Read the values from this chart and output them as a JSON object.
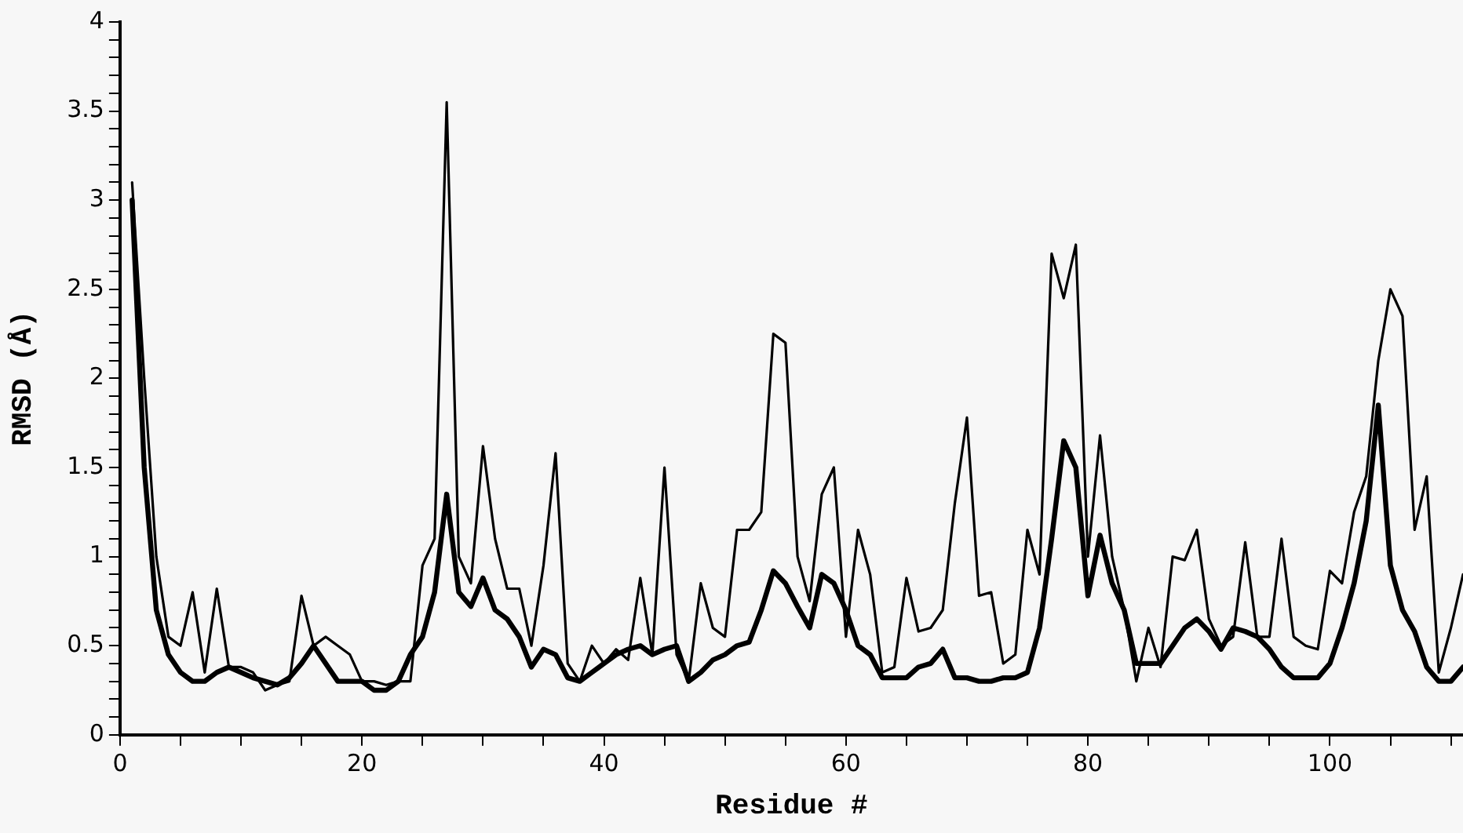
{
  "chart_data": {
    "type": "line",
    "xlabel": "Residue #",
    "ylabel": "RMSD (Å)",
    "x": [
      1,
      2,
      3,
      4,
      5,
      6,
      7,
      8,
      9,
      10,
      11,
      12,
      13,
      14,
      15,
      16,
      17,
      18,
      19,
      20,
      21,
      22,
      23,
      24,
      25,
      26,
      27,
      28,
      29,
      30,
      31,
      32,
      33,
      34,
      35,
      36,
      37,
      38,
      39,
      40,
      41,
      42,
      43,
      44,
      45,
      46,
      47,
      48,
      49,
      50,
      51,
      52,
      53,
      54,
      55,
      56,
      57,
      58,
      59,
      60,
      61,
      62,
      63,
      64,
      65,
      66,
      67,
      68,
      69,
      70,
      71,
      72,
      73,
      74,
      75,
      76,
      77,
      78,
      79,
      80,
      81,
      82,
      83,
      84,
      85,
      86,
      87,
      88,
      89,
      90,
      91,
      92,
      93,
      94,
      95,
      96,
      97,
      98,
      99,
      100,
      101,
      102,
      103,
      104,
      105,
      106,
      107,
      108,
      109,
      110,
      111
    ],
    "series": [
      {
        "color": "#000000",
        "values": [
          3.1,
          2.0,
          1.0,
          0.55,
          0.5,
          0.8,
          0.35,
          0.82,
          0.38,
          0.38,
          0.35,
          0.25,
          0.28,
          0.3,
          0.78,
          0.5,
          0.55,
          0.5,
          0.45,
          0.3,
          0.3,
          0.28,
          0.3,
          0.3,
          0.95,
          1.1,
          3.55,
          1.0,
          0.85,
          1.62,
          1.1,
          0.82,
          0.82,
          0.5,
          0.95,
          1.58,
          0.4,
          0.3,
          0.5,
          0.4,
          0.48,
          0.42,
          0.88,
          0.45,
          1.5,
          0.45,
          0.3,
          0.85,
          0.6,
          0.55,
          1.15,
          1.15,
          1.25,
          2.25,
          2.2,
          1.0,
          0.75,
          1.35,
          1.5,
          0.55,
          1.15,
          0.9,
          0.35,
          0.38,
          0.88,
          0.58,
          0.6,
          0.7,
          1.3,
          1.78,
          0.78,
          0.8,
          0.4,
          0.45,
          1.15,
          0.9,
          2.7,
          2.45,
          2.75,
          1.0,
          1.68,
          1.0,
          0.7,
          0.3,
          0.6,
          0.38,
          1.0,
          0.98,
          1.15,
          0.65,
          0.5,
          0.55,
          1.08,
          0.55,
          0.55,
          1.1,
          0.55,
          0.5,
          0.48,
          0.92,
          0.85,
          1.25,
          1.45,
          2.1,
          2.5,
          2.35,
          1.15,
          1.45,
          0.35,
          0.6,
          0.9
        ]
      },
      {
        "color": "#000000",
        "values": [
          3.0,
          1.5,
          0.7,
          0.45,
          0.35,
          0.3,
          0.3,
          0.35,
          0.38,
          0.35,
          0.32,
          0.3,
          0.28,
          0.32,
          0.4,
          0.5,
          0.4,
          0.3,
          0.3,
          0.3,
          0.25,
          0.25,
          0.3,
          0.45,
          0.55,
          0.8,
          1.35,
          0.8,
          0.72,
          0.88,
          0.7,
          0.65,
          0.55,
          0.38,
          0.48,
          0.45,
          0.32,
          0.3,
          0.35,
          0.4,
          0.45,
          0.48,
          0.5,
          0.45,
          0.48,
          0.5,
          0.3,
          0.35,
          0.42,
          0.45,
          0.5,
          0.52,
          0.7,
          0.92,
          0.85,
          0.72,
          0.6,
          0.9,
          0.85,
          0.7,
          0.5,
          0.45,
          0.32,
          0.32,
          0.32,
          0.38,
          0.4,
          0.48,
          0.32,
          0.32,
          0.3,
          0.3,
          0.32,
          0.32,
          0.35,
          0.6,
          1.1,
          1.65,
          1.5,
          0.78,
          1.12,
          0.85,
          0.7,
          0.4,
          0.4,
          0.4,
          0.5,
          0.6,
          0.65,
          0.58,
          0.48,
          0.6,
          0.58,
          0.55,
          0.48,
          0.38,
          0.32,
          0.32,
          0.32,
          0.4,
          0.6,
          0.85,
          1.2,
          1.85,
          0.95,
          0.7,
          0.58,
          0.38,
          0.3,
          0.3,
          0.38
        ]
      }
    ],
    "xlim": [
      0,
      111
    ],
    "xticks": [
      0,
      {
        "value": 5,
        "label": null
      },
      {
        "value": 10,
        "label": null
      },
      {
        "value": 15,
        "label": null
      },
      20,
      {
        "value": 25,
        "label": null
      },
      {
        "value": 30,
        "label": null
      },
      {
        "value": 35,
        "label": null
      },
      40,
      {
        "value": 45,
        "label": null
      },
      {
        "value": 50,
        "label": null
      },
      {
        "value": 55,
        "label": null
      },
      60,
      {
        "value": 65,
        "label": null
      },
      {
        "value": 70,
        "label": null
      },
      {
        "value": 75,
        "label": null
      },
      80,
      {
        "value": 85,
        "label": null
      },
      {
        "value": 90,
        "label": null
      },
      {
        "value": 95,
        "label": null
      },
      100,
      {
        "value": 105,
        "label": null
      },
      {
        "value": 110,
        "label": null
      }
    ],
    "ylim": [
      0,
      4
    ],
    "yticks": [
      0,
      {
        "value": 0.1,
        "label": null
      },
      {
        "value": 0.2,
        "label": null
      },
      {
        "value": 0.3,
        "label": null
      },
      {
        "value": 0.4,
        "label": null
      },
      0.5,
      {
        "value": 0.6,
        "label": null
      },
      {
        "value": 0.7,
        "label": null
      },
      {
        "value": 0.8,
        "label": null
      },
      {
        "value": 0.9,
        "label": null
      },
      1,
      {
        "value": 1.1,
        "label": null
      },
      {
        "value": 1.2,
        "label": null
      },
      {
        "value": 1.3,
        "label": null
      },
      {
        "value": 1.4,
        "label": null
      },
      1.5,
      {
        "value": 1.6,
        "label": null
      },
      {
        "value": 1.7,
        "label": null
      },
      {
        "value": 1.8,
        "label": null
      },
      {
        "value": 1.9,
        "label": null
      },
      2,
      {
        "value": 2.1,
        "label": null
      },
      {
        "value": 2.2,
        "label": null
      },
      {
        "value": 2.3,
        "label": null
      },
      {
        "value": 2.4,
        "label": null
      },
      2.5,
      {
        "value": 2.6,
        "label": null
      },
      {
        "value": 2.7,
        "label": null
      },
      {
        "value": 2.8,
        "label": null
      },
      {
        "value": 2.9,
        "label": null
      },
      3,
      {
        "value": 3.1,
        "label": null
      },
      {
        "value": 3.2,
        "label": null
      },
      {
        "value": 3.3,
        "label": null
      },
      {
        "value": 3.4,
        "label": null
      },
      3.5,
      {
        "value": 3.6,
        "label": null
      },
      {
        "value": 3.7,
        "label": null
      },
      {
        "value": 3.8,
        "label": null
      },
      {
        "value": 3.9,
        "label": null
      },
      4
    ],
    "grid": false,
    "legend": false,
    "marker": "none",
    "line_style": "solid"
  }
}
